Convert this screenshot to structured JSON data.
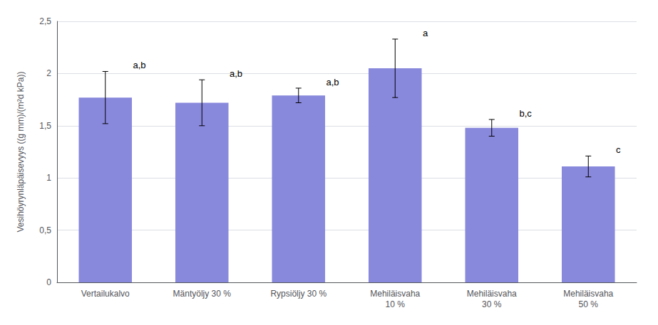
{
  "chart_data": {
    "type": "bar",
    "categories": [
      "Vertailukalvo",
      "Mäntyöljy 30 %",
      "Rypsiöljy 30 %",
      "Mehiläisvaha\n10 %",
      "Mehiläisvaha\n30 %",
      "Mehiläisvaha\n50 %"
    ],
    "values": [
      1.77,
      1.72,
      1.79,
      2.05,
      1.48,
      1.11
    ],
    "errors": [
      0.25,
      0.22,
      0.07,
      0.28,
      0.08,
      0.1
    ],
    "labels": [
      "a,b",
      "a,b",
      "a,b",
      "a",
      "b,c",
      "c"
    ],
    "color": "#8888dd",
    "ylabel": "Vesihöyrynläpäisevyys ((g mm)/(m²d kPa))",
    "ylim": [
      0,
      2.5
    ],
    "yticks": [
      0,
      {
        "value": 0.5,
        "label": "0,5"
      },
      1,
      {
        "value": 1.5,
        "label": "1,5"
      },
      2,
      {
        "value": 2.5,
        "label": "2,5"
      }
    ],
    "grid": true
  }
}
